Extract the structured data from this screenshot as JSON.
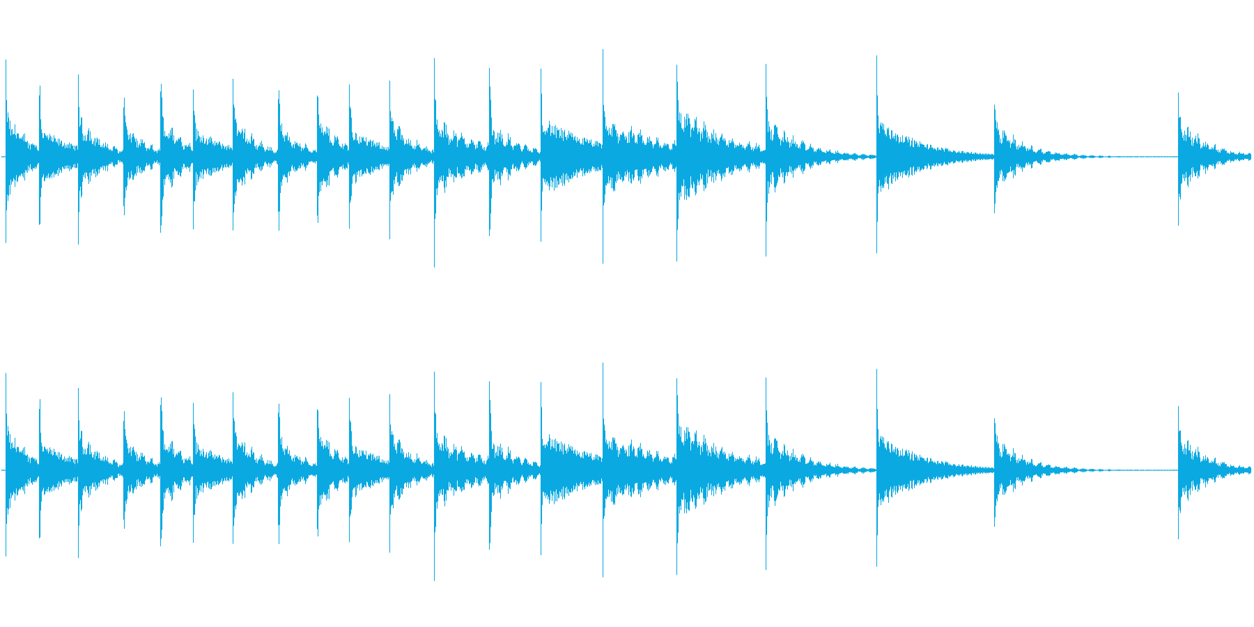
{
  "waveform": {
    "color": "#0aa9e1",
    "background": "#ffffff",
    "channel_count": 2,
    "channels": [
      {
        "name": "channel-1"
      },
      {
        "name": "channel-2"
      }
    ],
    "hits": [
      {
        "t": 0.003,
        "peak": 0.85,
        "decay": 0.018,
        "body": 0.28,
        "ring": true
      },
      {
        "t": 0.03,
        "peak": 0.82,
        "decay": 0.03,
        "body": 0.22,
        "ring": false
      },
      {
        "t": 0.061,
        "peak": 0.83,
        "decay": 0.018,
        "body": 0.25,
        "ring": true
      },
      {
        "t": 0.097,
        "peak": 0.88,
        "decay": 0.016,
        "body": 0.22,
        "ring": true
      },
      {
        "t": 0.127,
        "peak": 0.82,
        "decay": 0.018,
        "body": 0.26,
        "ring": true
      },
      {
        "t": 0.153,
        "peak": 0.81,
        "decay": 0.03,
        "body": 0.22,
        "ring": false
      },
      {
        "t": 0.185,
        "peak": 0.84,
        "decay": 0.018,
        "body": 0.25,
        "ring": true
      },
      {
        "t": 0.221,
        "peak": 0.88,
        "decay": 0.016,
        "body": 0.22,
        "ring": true
      },
      {
        "t": 0.252,
        "peak": 0.82,
        "decay": 0.018,
        "body": 0.26,
        "ring": true
      },
      {
        "t": 0.278,
        "peak": 0.81,
        "decay": 0.03,
        "body": 0.22,
        "ring": false
      },
      {
        "t": 0.31,
        "peak": 0.82,
        "decay": 0.018,
        "body": 0.25,
        "ring": true
      },
      {
        "t": 0.346,
        "peak": 0.88,
        "decay": 0.035,
        "body": 0.22,
        "ring": true
      },
      {
        "t": 0.39,
        "peak": 0.92,
        "decay": 0.022,
        "body": 0.2,
        "ring": true
      },
      {
        "t": 0.431,
        "peak": 0.81,
        "decay": 0.045,
        "body": 0.3,
        "ring": false
      },
      {
        "t": 0.481,
        "peak": 0.84,
        "decay": 0.05,
        "body": 0.22,
        "ring": true
      },
      {
        "t": 0.54,
        "peak": 0.98,
        "decay": 0.04,
        "body": 0.32,
        "ring": true
      },
      {
        "t": 0.611,
        "peak": 0.9,
        "decay": 0.025,
        "body": 0.24,
        "ring": true
      },
      {
        "t": 0.7,
        "peak": 0.81,
        "decay": 0.035,
        "body": 0.3,
        "ring": false
      },
      {
        "t": 0.794,
        "peak": 0.85,
        "decay": 0.02,
        "body": 0.22,
        "ring": true
      },
      {
        "t": 0.941,
        "peak": 0.88,
        "decay": 0.02,
        "body": 0.24,
        "ring": true
      }
    ],
    "end_marker_t": 0.846,
    "duration": 1.0
  }
}
